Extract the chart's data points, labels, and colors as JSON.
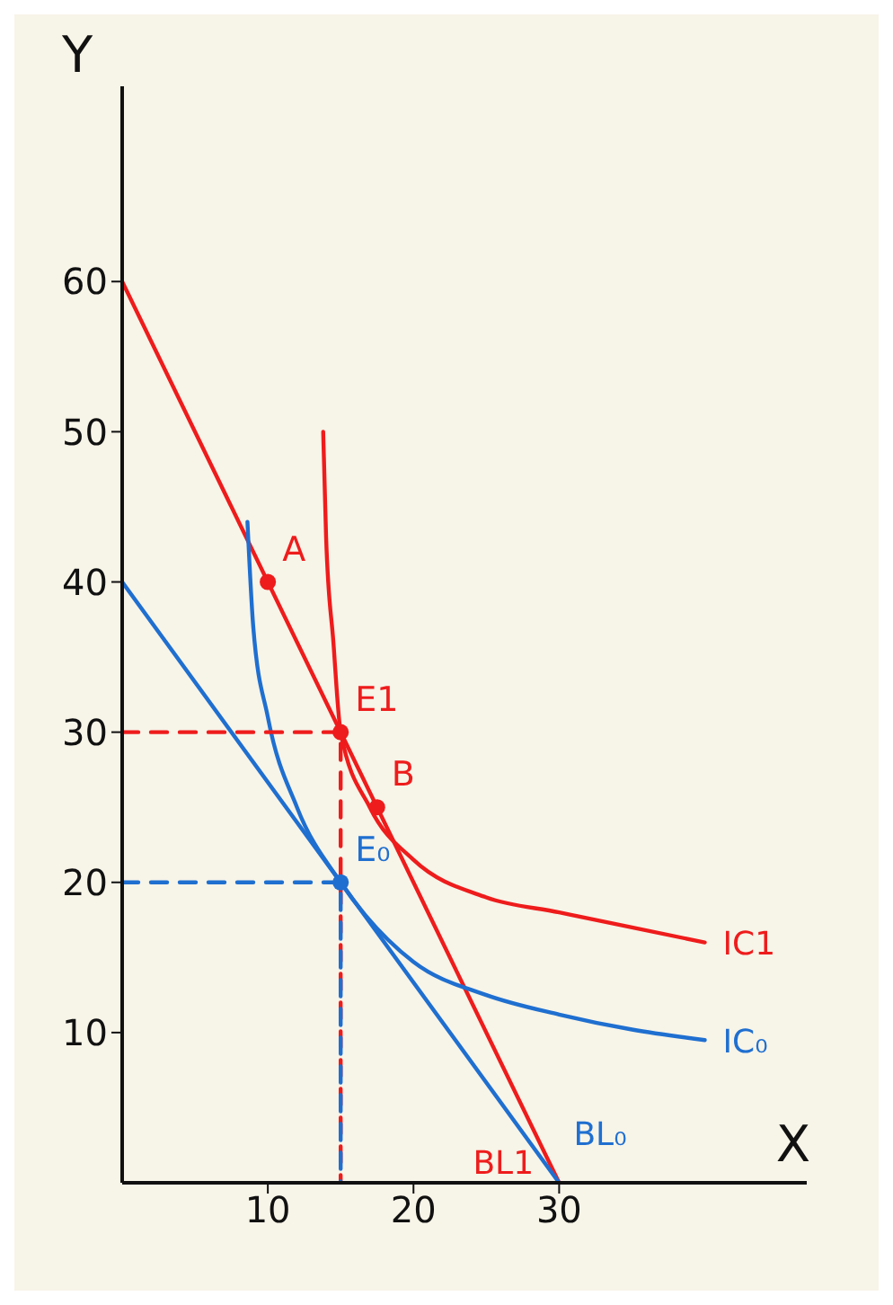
{
  "chart_data": {
    "type": "line",
    "xlabel": "X",
    "ylabel": "Y",
    "xlim": [
      0,
      47
    ],
    "ylim": [
      0,
      73
    ],
    "xticks": [
      10,
      20,
      30
    ],
    "yticks": [
      10,
      20,
      30,
      40,
      50,
      60
    ],
    "series": [
      {
        "name": "BL1",
        "color": "#ee1c1c",
        "x": [
          0,
          30
        ],
        "values": [
          60,
          0
        ]
      },
      {
        "name": "BL₀",
        "color": "#1f6fd0",
        "x": [
          0,
          30
        ],
        "values": [
          40,
          0
        ]
      },
      {
        "name": "IC1",
        "color": "#ee1c1c",
        "x": [
          13.8,
          14,
          14.5,
          15,
          17,
          20,
          25,
          30,
          35,
          40
        ],
        "values": [
          50,
          43,
          36,
          30,
          25,
          21.5,
          19,
          18,
          17,
          16
        ]
      },
      {
        "name": "IC₀",
        "color": "#1f6fd0",
        "x": [
          8.6,
          9,
          10,
          12,
          15,
          20,
          25,
          30,
          35,
          40
        ],
        "values": [
          44,
          37,
          31,
          25,
          20,
          14.7,
          12.5,
          11.2,
          10.2,
          9.5
        ]
      },
      {
        "type": "line",
        "line_style": "dashed",
        "color": "#ee1c1c",
        "x": [
          0,
          15,
          15
        ],
        "values": [
          30,
          30,
          0
        ]
      },
      {
        "type": "line",
        "line_style": "dashed",
        "color": "#1f6fd0",
        "x": [
          0,
          15,
          15
        ],
        "values": [
          20,
          20,
          0
        ]
      },
      {
        "type": "scatter",
        "marker": "circle",
        "color": "#ee1c1c",
        "x": [
          10,
          17.5,
          15
        ],
        "values": [
          40,
          25,
          30
        ]
      },
      {
        "type": "scatter",
        "marker": "circle",
        "color": "#1f6fd0",
        "x": [
          15
        ],
        "values": [
          20
        ]
      }
    ],
    "annotations": [
      {
        "text": "A",
        "x": 10,
        "y": 40
      },
      {
        "text": "B",
        "x": 17.5,
        "y": 25
      },
      {
        "text": "E1",
        "x": 15,
        "y": 30
      },
      {
        "text": "E₀",
        "x": 15,
        "y": 20
      }
    ]
  }
}
